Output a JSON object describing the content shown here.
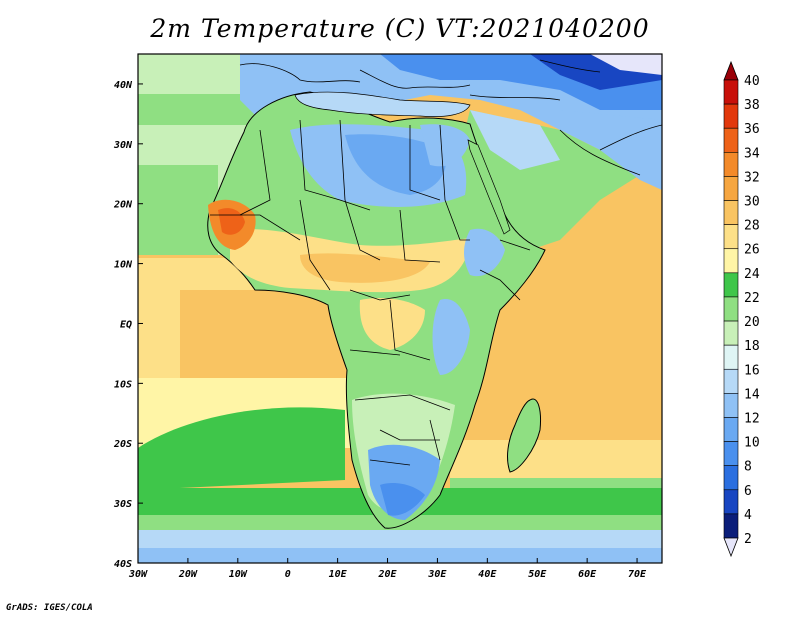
{
  "title": "2m Temperature (C) VT:2021040200",
  "credit": "GrADS: IGES/COLA",
  "map": {
    "lon_range": [
      -30,
      75
    ],
    "lat_range": [
      -40,
      45
    ],
    "lat_ticks": [
      "40N",
      "30N",
      "20N",
      "10N",
      "EQ",
      "10S",
      "20S",
      "30S",
      "40S"
    ],
    "lon_ticks": [
      "30W",
      "20W",
      "10W",
      "0",
      "10E",
      "20E",
      "30E",
      "40E",
      "50E",
      "60E",
      "70E"
    ],
    "variable": "2m Temperature",
    "units": "C",
    "valid_time": "2021040200"
  },
  "colorbar": {
    "labels": [
      "2",
      "4",
      "6",
      "8",
      "10",
      "12",
      "14",
      "16",
      "18",
      "20",
      "22",
      "24",
      "26",
      "28",
      "30",
      "32",
      "34",
      "36",
      "38",
      "40"
    ],
    "colors": [
      "#e6e6fa",
      "#0b1e7a",
      "#1846c2",
      "#2b6fe0",
      "#4a90ee",
      "#6aa9f2",
      "#8fc1f5",
      "#b6d9f7",
      "#dff5f5",
      "#c8f0b8",
      "#8fdf82",
      "#3fc64a",
      "#fff5a6",
      "#fde088",
      "#f9c462",
      "#f6a640",
      "#f38a2a",
      "#ee6218",
      "#e2380c",
      "#c8100a",
      "#9a0008"
    ]
  },
  "regions": {
    "tropical_atlantic": "#f9c462",
    "indian_ocean": "#f9c462",
    "southern_ocean": "#3fc64a",
    "far_south": "#8fc1f5",
    "mediterranean": "#8fc1f5",
    "north_atlantic": "#8fdf82",
    "sahara": "#6aa9f2",
    "sahel": "#fde088",
    "west_africa_hot": "#ee6218",
    "central_africa": "#8fdf82",
    "southern_africa": "#c8f0b8",
    "kalahari_cool": "#6aa9f2",
    "madagascar": "#8fdf82"
  }
}
